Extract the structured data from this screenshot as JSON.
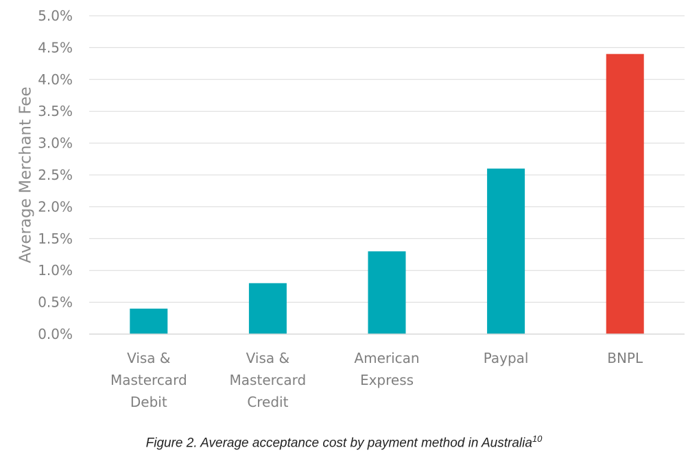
{
  "chart_data": {
    "type": "bar",
    "title": "",
    "xlabel": "",
    "ylabel": "Average Merchant Fee",
    "categories": [
      [
        "Visa &",
        "Mastercard",
        "Debit"
      ],
      [
        "Visa &",
        "Mastercard",
        "Credit"
      ],
      [
        "American",
        "Express"
      ],
      [
        "Paypal"
      ],
      [
        "BNPL"
      ]
    ],
    "values": [
      0.4,
      0.8,
      1.3,
      2.6,
      4.4
    ],
    "ylim": [
      0,
      5.0
    ],
    "yticks": [
      "0.0%",
      "0.5%",
      "1.0%",
      "1.5%",
      "2.0%",
      "2.5%",
      "3.0%",
      "3.5%",
      "4.0%",
      "4.5%",
      "5.0%"
    ],
    "grid": true,
    "legend": "none",
    "colors": [
      "#00a9b7",
      "#00a9b7",
      "#00a9b7",
      "#00a9b7",
      "#e84133"
    ]
  },
  "caption": {
    "text": "Figure 2. Average acceptance cost by payment method in Australia",
    "superscript": "10"
  }
}
